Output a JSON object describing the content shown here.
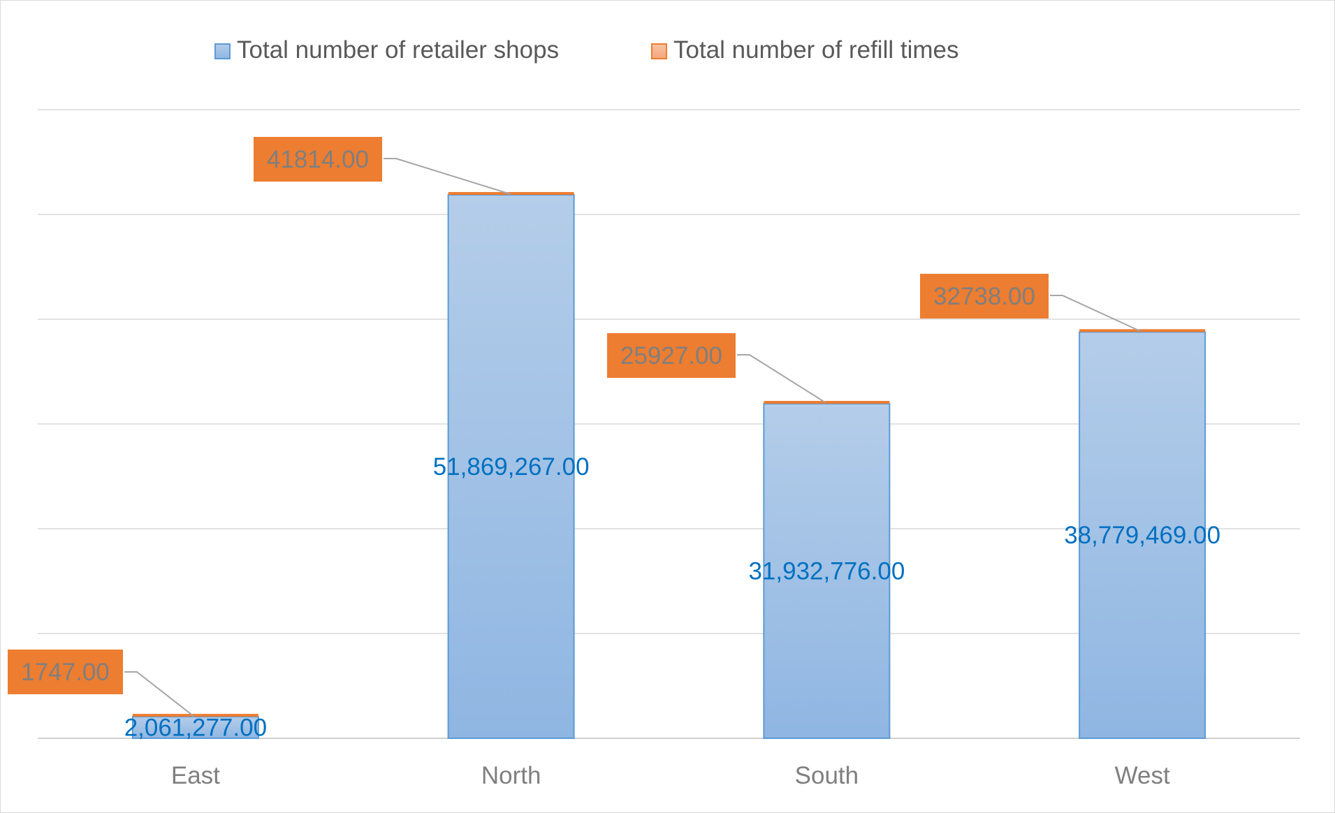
{
  "chart_data": {
    "type": "bar",
    "stacked": true,
    "categories": [
      "East",
      "North",
      "South",
      "West"
    ],
    "series": [
      {
        "name": "Total number of retailer shops",
        "values": [
          2061277.0,
          51869267.0,
          31932776.0,
          38779469.0
        ],
        "labels": [
          "2,061,277.00",
          "51,869,267.00",
          "31,932,776.00",
          "38,779,469.00"
        ],
        "color": "#9dc3e6",
        "border_color": "#5b9bd5",
        "label_color": "#0070c0"
      },
      {
        "name": "Total number of refill times",
        "values": [
          1747.0,
          41814.0,
          25927.0,
          32738.0
        ],
        "labels": [
          "1747.00",
          "41814.00",
          "25927.00",
          "32738.00"
        ],
        "color": "#ed7d31",
        "label_color": "#7f7f7f"
      }
    ],
    "ylim": [
      0,
      60000000
    ],
    "gridlines": true,
    "legend_position": "top",
    "axis_label_color": "#7f7f7f"
  }
}
